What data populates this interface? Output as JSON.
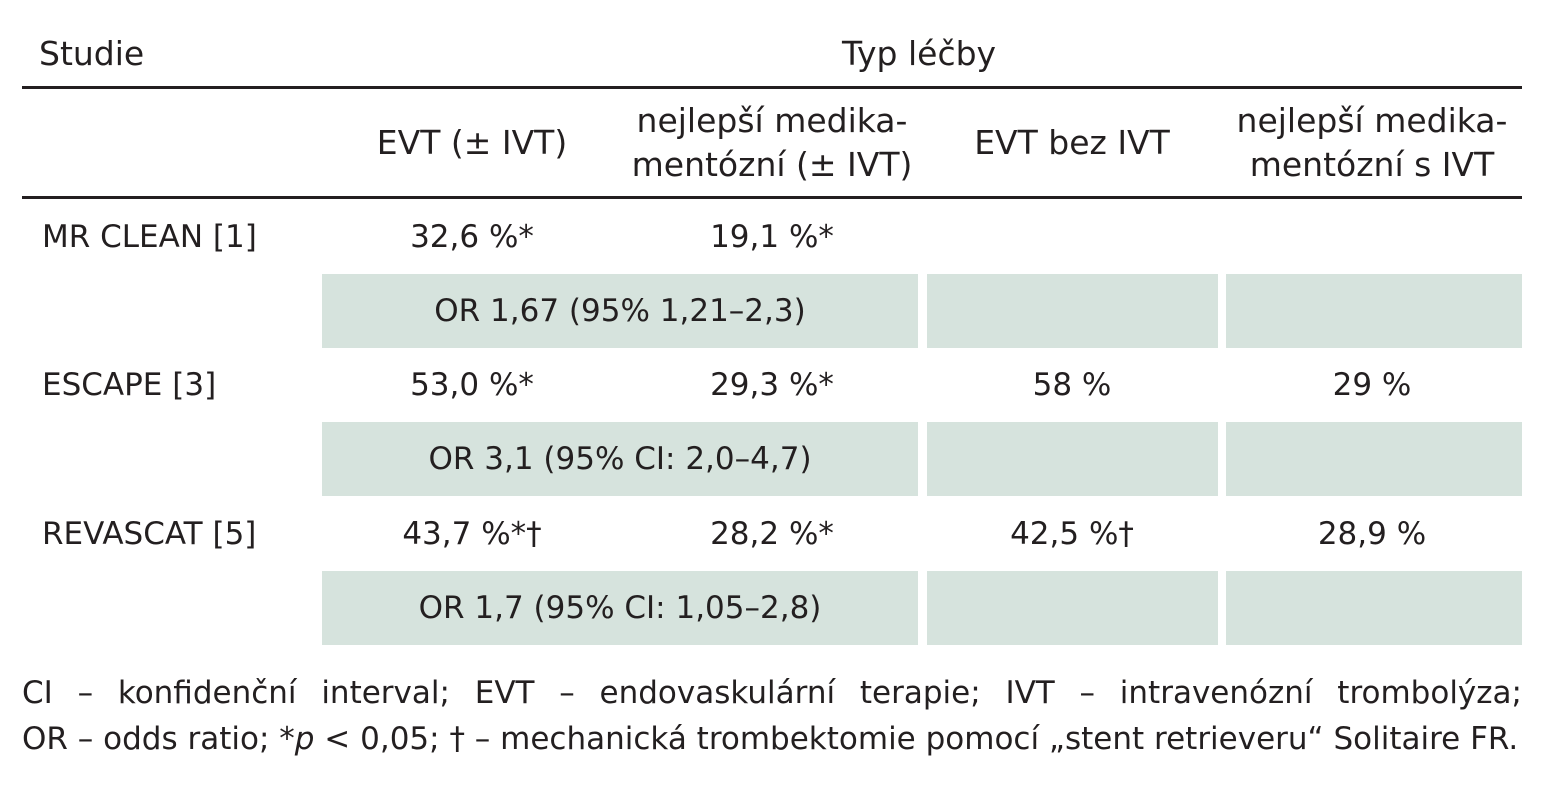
{
  "header": {
    "study_label": "Studie",
    "treatment_label": "Typ léčby"
  },
  "columns": [
    {
      "line1": "EVT (± IVT)",
      "line2": ""
    },
    {
      "line1": "nejlepší medika-",
      "line2": "mentózní (± IVT)"
    },
    {
      "line1": "EVT bez IVT",
      "line2": ""
    },
    {
      "line1": "nejlepší medika-",
      "line2": "mentózní s IVT"
    }
  ],
  "rows": [
    {
      "study": "MR CLEAN [1]",
      "evt": "32,6 %*",
      "best": "19,1 %*",
      "evt_no_ivt": "",
      "best_ivt": "",
      "or": "OR 1,67 (95% 1,21–2,3)"
    },
    {
      "study": "ESCAPE [3]",
      "evt": "53,0 %*",
      "best": "29,3 %*",
      "evt_no_ivt": "58 %",
      "best_ivt": "29 %",
      "or": "OR 3,1 (95% CI: 2,0–4,7)"
    },
    {
      "study": "REVASCAT [5]",
      "evt": "43,7 %*†",
      "best": "28,2 %*",
      "evt_no_ivt": "42,5 %†",
      "best_ivt": "28,9 %",
      "or": "OR 1,7 (95% CI: 1,05–2,8)"
    }
  ],
  "footnote": {
    "line1": "CI – konfidenční interval; EVT – endovaskulární terapie; IVT – intravenózní trombolýza;",
    "line2_a": "OR – odds ratio; *",
    "line2_p": "p",
    "line2_b": " < 0,05; † – mechanická trombektomie pomocí „stent retrieveru“ Solitaire FR."
  },
  "colors": {
    "shade": "#d6e3dd",
    "text": "#231f20",
    "rule": "#231f20"
  }
}
